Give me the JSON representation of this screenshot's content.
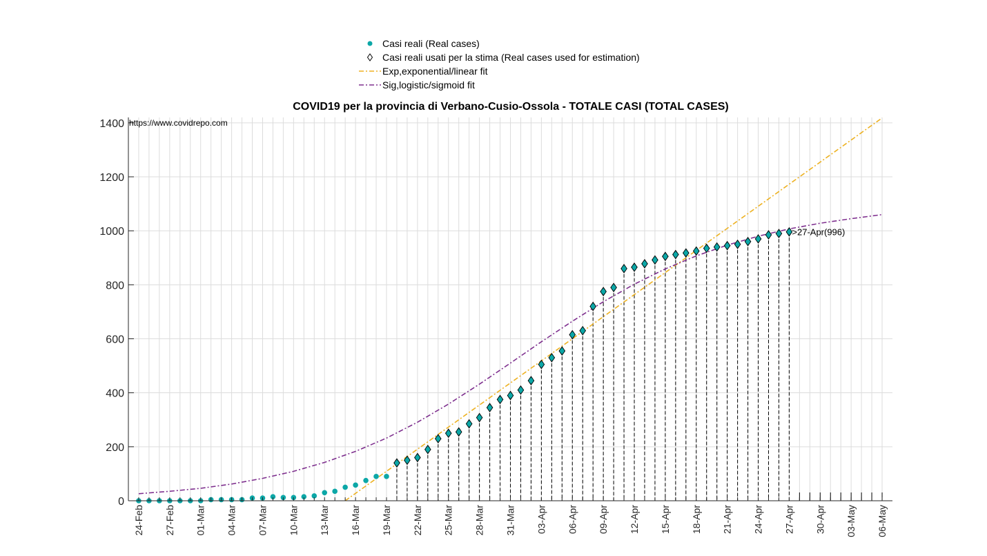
{
  "chart_data": {
    "type": "scatter",
    "title": "COVID19 per la provincia di Verbano-Cusio-Ossola - TOTALE CASI (TOTAL CASES)",
    "source_text": "https://www.covidrepo.com",
    "xlabel": "",
    "ylabel": "",
    "x_start_date": "2020-02-24",
    "x_tick_labels": [
      "24-Feb",
      "27-Feb",
      "01-Mar",
      "04-Mar",
      "07-Mar",
      "10-Mar",
      "13-Mar",
      "16-Mar",
      "19-Mar",
      "22-Mar",
      "25-Mar",
      "28-Mar",
      "31-Mar",
      "03-Apr",
      "06-Apr",
      "09-Apr",
      "12-Apr",
      "15-Apr",
      "18-Apr",
      "21-Apr",
      "24-Apr",
      "27-Apr",
      "30-Apr",
      "03-May",
      "06-May"
    ],
    "y_ticks": [
      0,
      200,
      400,
      600,
      800,
      1000,
      1200,
      1400
    ],
    "xlim": [
      "2020-02-23",
      "2020-05-07"
    ],
    "ylim": [
      0,
      1420
    ],
    "grid": true,
    "legend_position": "top-center",
    "legend": [
      {
        "label": "Casi reali (Real cases)",
        "style": "dot",
        "color": "#0ca7a7"
      },
      {
        "label": "Casi reali usati per la stima (Real cases used for estimation)",
        "style": "diamond",
        "color": "#000000"
      },
      {
        "label": "Exp,exponential/linear fit",
        "style": "dashdot",
        "color": "#edb120"
      },
      {
        "label": "Sig,logistic/sigmoid fit",
        "style": "dashdot",
        "color": "#7e2f8e"
      }
    ],
    "annotation": ">27-Apr(996)",
    "annotation_date": "2020-04-27",
    "annotation_value": 996,
    "estimation_start_date": "2020-03-20",
    "vline_end_date": "2020-05-06",
    "series": [
      {
        "name": "Casi reali (Real cases)",
        "color": "#0ca7a7",
        "dates": [
          "2020-02-24",
          "2020-02-25",
          "2020-02-26",
          "2020-02-27",
          "2020-02-28",
          "2020-02-29",
          "2020-03-01",
          "2020-03-02",
          "2020-03-03",
          "2020-03-04",
          "2020-03-05",
          "2020-03-06",
          "2020-03-07",
          "2020-03-08",
          "2020-03-09",
          "2020-03-10",
          "2020-03-11",
          "2020-03-12",
          "2020-03-13",
          "2020-03-14",
          "2020-03-15",
          "2020-03-16",
          "2020-03-17",
          "2020-03-18",
          "2020-03-19",
          "2020-03-20",
          "2020-03-21",
          "2020-03-22",
          "2020-03-23",
          "2020-03-24",
          "2020-03-25",
          "2020-03-26",
          "2020-03-27",
          "2020-03-28",
          "2020-03-29",
          "2020-03-30",
          "2020-03-31",
          "2020-04-01",
          "2020-04-02",
          "2020-04-03",
          "2020-04-04",
          "2020-04-05",
          "2020-04-06",
          "2020-04-07",
          "2020-04-08",
          "2020-04-09",
          "2020-04-10",
          "2020-04-11",
          "2020-04-12",
          "2020-04-13",
          "2020-04-14",
          "2020-04-15",
          "2020-04-16",
          "2020-04-17",
          "2020-04-18",
          "2020-04-19",
          "2020-04-20",
          "2020-04-21",
          "2020-04-22",
          "2020-04-23",
          "2020-04-24",
          "2020-04-25",
          "2020-04-26",
          "2020-04-27"
        ],
        "values": [
          0,
          0,
          0,
          0,
          0,
          0,
          0,
          4,
          4,
          4,
          4,
          10,
          10,
          15,
          12,
          12,
          15,
          18,
          30,
          35,
          50,
          58,
          75,
          90,
          90,
          140,
          150,
          160,
          190,
          230,
          250,
          255,
          285,
          308,
          345,
          375,
          390,
          410,
          445,
          505,
          530,
          555,
          615,
          630,
          720,
          775,
          790,
          860,
          865,
          878,
          892,
          905,
          912,
          918,
          925,
          935,
          940,
          945,
          950,
          960,
          970,
          985,
          990,
          996
        ]
      },
      {
        "name": "Exp,exponential/linear fit",
        "color": "#edb120",
        "line": "dashdot",
        "dates": [
          "2020-03-15",
          "2020-05-06"
        ],
        "values": [
          0,
          1418
        ]
      },
      {
        "name": "Sig,logistic/sigmoid fit",
        "color": "#7e2f8e",
        "line": "dashdot",
        "dates": [
          "2020-02-24",
          "2020-02-27",
          "2020-03-01",
          "2020-03-04",
          "2020-03-07",
          "2020-03-10",
          "2020-03-13",
          "2020-03-16",
          "2020-03-19",
          "2020-03-22",
          "2020-03-25",
          "2020-03-28",
          "2020-03-31",
          "2020-04-03",
          "2020-04-06",
          "2020-04-09",
          "2020-04-12",
          "2020-04-15",
          "2020-04-18",
          "2020-04-21",
          "2020-04-24",
          "2020-04-27",
          "2020-04-30",
          "2020-05-03",
          "2020-05-06"
        ],
        "values": [
          26,
          35,
          46,
          62,
          83,
          109,
          142,
          183,
          232,
          291,
          358,
          432,
          510,
          589,
          665,
          737,
          802,
          859,
          907,
          947,
          980,
          1007,
          1028,
          1045,
          1060
        ]
      }
    ]
  }
}
